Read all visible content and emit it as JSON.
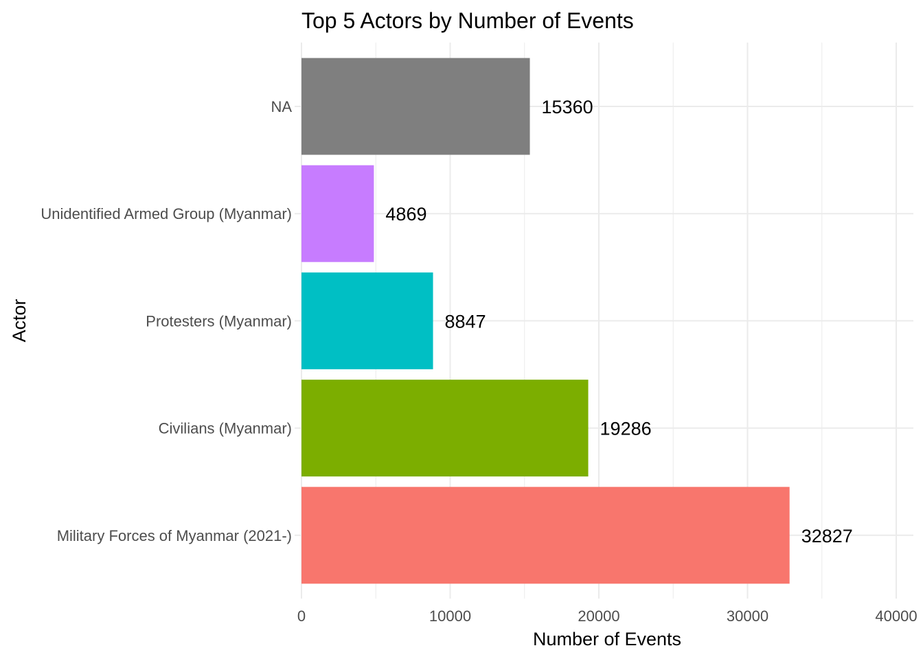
{
  "chart_data": {
    "type": "bar",
    "orientation": "horizontal",
    "title": "Top 5 Actors by Number of Events",
    "xlabel": "Number of Events",
    "ylabel": "Actor",
    "categories": [
      "NA",
      "Unidentified Armed Group (Myanmar)",
      "Protesters (Myanmar)",
      "Civilians (Myanmar)",
      "Military Forces of Myanmar (2021-)"
    ],
    "values": [
      15360,
      4869,
      8847,
      19286,
      32827
    ],
    "data_labels": [
      "15360",
      "4869",
      "8847",
      "19286",
      "32827"
    ],
    "colors": [
      "#7f7f7f",
      "#c77cff",
      "#00bfc4",
      "#7cae00",
      "#f8766d"
    ],
    "xlim": [
      0,
      40000
    ],
    "x_ticks": [
      0,
      10000,
      20000,
      30000,
      40000
    ],
    "x_tick_labels": [
      "0",
      "10000",
      "20000",
      "30000",
      "40000"
    ],
    "grid": true,
    "legend": "none"
  }
}
